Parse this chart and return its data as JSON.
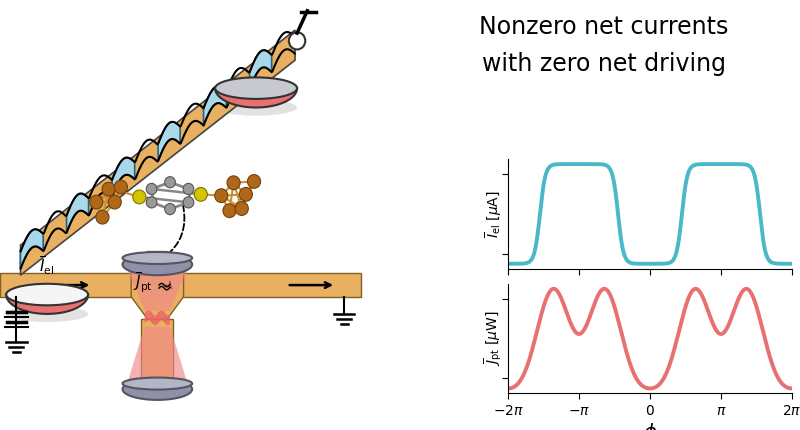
{
  "title_line1": "Nonzero net currents",
  "title_line2": "with zero net driving",
  "title_fontsize": 17,
  "xlabel": "$\\phi$",
  "ylabel_top": "$\\overline{I}_{\\mathrm{el}}$ [$\\mu$A]",
  "ylabel_bottom": "$\\overline{J}_{\\mathrm{pt}}$ [$\\mu$W]",
  "xlim": [
    -6.283185307,
    6.283185307
  ],
  "xticks": [
    -6.283185307,
    -3.141592653,
    0,
    3.141592653,
    6.283185307
  ],
  "xticklabels": [
    "$-2\\pi$",
    "$-\\pi$",
    "$0$",
    "$\\pi$",
    "$2\\pi$"
  ],
  "line_color_top": "#4ab8c8",
  "line_color_bottom": "#e87070",
  "line_width": 2.8,
  "background_color": "#ffffff"
}
